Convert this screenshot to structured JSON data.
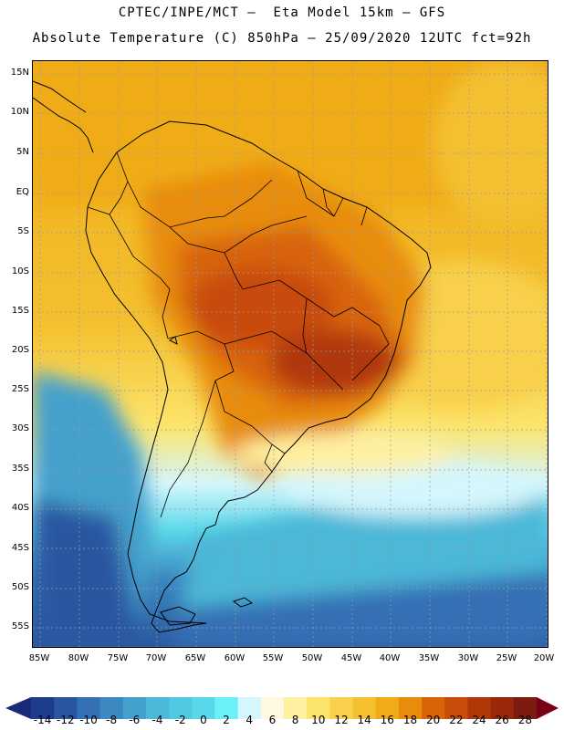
{
  "header": {
    "title_line1": "CPTEC/INPE/MCT –  Eta Model 15km – GFS",
    "title_line2": "Absolute Temperature (C) 850hPa – 25/09/2020 12UTC fct=92h"
  },
  "map": {
    "region": "South America",
    "variable": "Absolute Temperature",
    "level": "850hPa",
    "lat_labels": [
      "15N",
      "10N",
      "5N",
      "EQ",
      "5S",
      "10S",
      "15S",
      "20S",
      "25S",
      "30S",
      "35S",
      "40S",
      "45S",
      "50S",
      "55S"
    ],
    "lon_labels": [
      "85W",
      "80W",
      "75W",
      "70W",
      "65W",
      "60W",
      "55W",
      "50W",
      "45W",
      "40W",
      "35W",
      "30W",
      "25W",
      "20W"
    ]
  },
  "colorbar": {
    "labels": [
      "-14",
      "-12",
      "-10",
      "-8",
      "-6",
      "-4",
      "-2",
      "0",
      "2",
      "4",
      "6",
      "8",
      "10",
      "12",
      "14",
      "16",
      "18",
      "20",
      "22",
      "24",
      "26",
      "28"
    ],
    "colors": [
      "#1e3c8c",
      "#2a56a0",
      "#3470b4",
      "#3c88c0",
      "#44a0cc",
      "#4cb8d8",
      "#50c8e0",
      "#5ad8ea",
      "#6af0f6",
      "#d4f6fc",
      "#fff8e0",
      "#fff0a0",
      "#fce46c",
      "#f8d04c",
      "#f4c030",
      "#f0ac18",
      "#e88c0c",
      "#d8640a",
      "#c84c0a",
      "#b03808",
      "#982808",
      "#7c1c10"
    ],
    "low_end_color": "#1a2a78",
    "high_end_color": "#780014"
  }
}
